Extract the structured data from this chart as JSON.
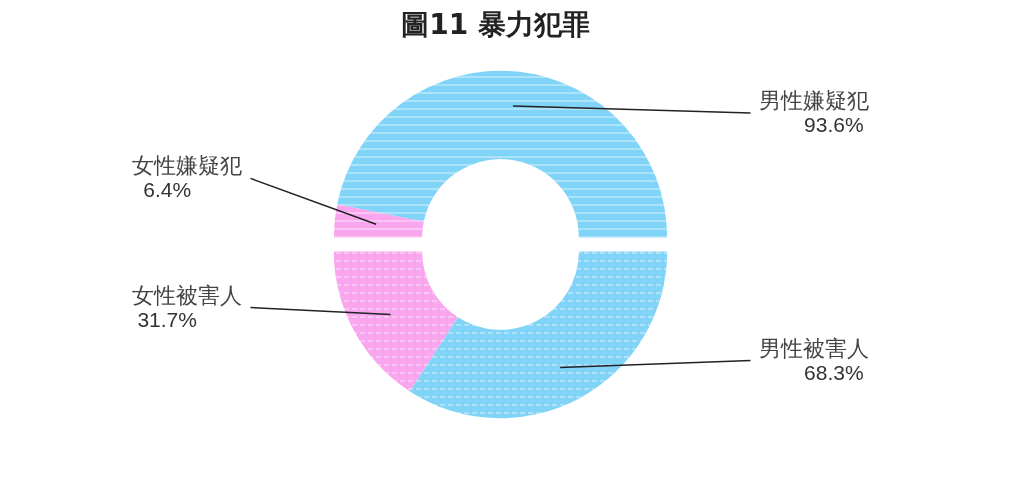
{
  "chart_data": {
    "type": "donut",
    "title": "圖11  暴力犯罪",
    "categories": [
      "男性嫌疑犯",
      "女性嫌疑犯",
      "女性被害人",
      "男性被害人"
    ],
    "values": [
      93.6,
      6.4,
      31.7,
      68.3
    ],
    "colors": [
      "#7fd4f7",
      "#f9a6ef",
      "#f9a6ef",
      "#7fd4f7"
    ],
    "value_labels": [
      "93.6%",
      "6.4%",
      "31.7%",
      "68.3%"
    ]
  }
}
